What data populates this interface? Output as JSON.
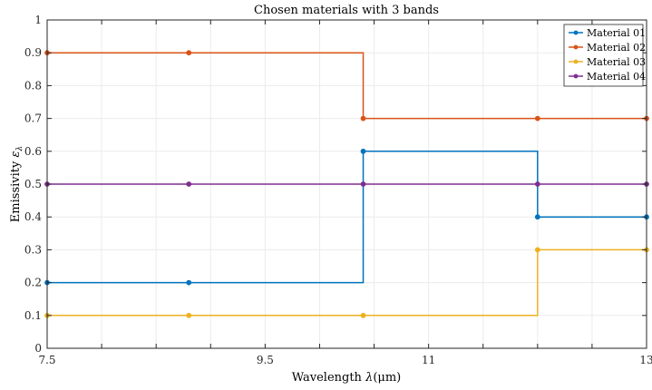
{
  "chart_data": {
    "type": "line",
    "step": true,
    "title": "Chosen materials with 3 bands",
    "xlabel_prefix": "Wavelength ",
    "xlabel_symbol": "λ",
    "xlabel_unit": "(μm)",
    "ylabel_prefix": "Emissivity ",
    "ylabel_symbol": "ε",
    "ylabel_sub": "λ",
    "xlim": [
      7.5,
      13
    ],
    "ylim": [
      0,
      1
    ],
    "xticks": [
      7.5,
      8,
      8.5,
      9,
      9.5,
      10,
      10.5,
      11,
      11.5,
      12,
      12.5,
      13
    ],
    "xtick_labels": [
      "7.5",
      "",
      "",
      "",
      "9.5",
      "",
      "",
      "11",
      "",
      "",
      "",
      "13"
    ],
    "yticks": [
      0,
      0.1,
      0.2,
      0.3,
      0.4,
      0.5,
      0.6,
      0.7,
      0.8,
      0.9,
      1
    ],
    "ytick_labels": [
      "0",
      "0.1",
      "0.2",
      "0.3",
      "0.4",
      "0.5",
      "0.6",
      "0.7",
      "0.8",
      "0.9",
      "1"
    ],
    "grid": true,
    "legend_position": "top-right",
    "series": [
      {
        "name": "Material 01",
        "color": "#0072BD",
        "x": [
          7.5,
          8.8,
          10.4,
          12.0,
          13.0
        ],
        "y": [
          0.2,
          0.2,
          0.6,
          0.4,
          0.4
        ]
      },
      {
        "name": "Material 02",
        "color": "#D95319",
        "x": [
          7.5,
          8.8,
          10.4,
          12.0,
          13.0
        ],
        "y": [
          0.9,
          0.9,
          0.7,
          0.7,
          0.7
        ]
      },
      {
        "name": "Material 03",
        "color": "#EDB120",
        "x": [
          7.5,
          8.8,
          10.4,
          12.0,
          13.0
        ],
        "y": [
          0.1,
          0.1,
          0.1,
          0.3,
          0.3
        ]
      },
      {
        "name": "Material 04",
        "color": "#7E2F8E",
        "x": [
          7.5,
          8.8,
          10.4,
          12.0,
          13.0
        ],
        "y": [
          0.5,
          0.5,
          0.5,
          0.5,
          0.5
        ]
      }
    ]
  }
}
